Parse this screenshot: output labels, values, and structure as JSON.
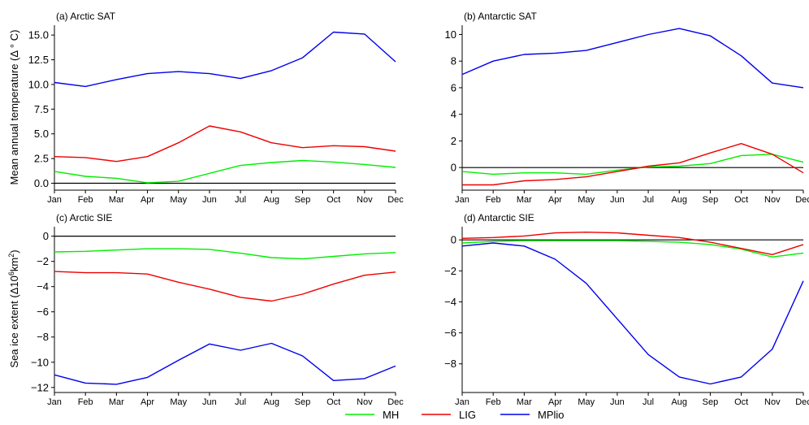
{
  "legend": [
    {
      "name": "MH",
      "color": "#00ee00"
    },
    {
      "name": "LIG",
      "color": "#ee0000"
    },
    {
      "name": "MPlio",
      "color": "#0000ee"
    }
  ],
  "y_labels": {
    "sat": "Mean annual temperature (Δ ° C)",
    "sie_prefix": "Sea ice extent (Δ10",
    "sie_exp1": "6",
    "sie_mid": "km",
    "sie_exp2": "2",
    "sie_suffix": ")"
  },
  "chart_data": [
    {
      "id": "a",
      "type": "line",
      "title": "(a) Arctic SAT",
      "categories": [
        "Jan",
        "Feb",
        "Mar",
        "Apr",
        "May",
        "Jun",
        "Jul",
        "Aug",
        "Sep",
        "Oct",
        "Nov",
        "Dec"
      ],
      "ylim": [
        -0.7,
        16.0
      ],
      "yticks": [
        0.0,
        2.5,
        5.0,
        7.5,
        10.0,
        12.5,
        15.0
      ],
      "ytick_labels": [
        "0.0",
        "2.5",
        "5.0",
        "7.5",
        "10.0",
        "12.5",
        "15.0"
      ],
      "zero_line": true,
      "series": [
        {
          "name": "MH",
          "values": [
            1.2,
            0.7,
            0.5,
            0.05,
            0.2,
            1.0,
            1.8,
            2.1,
            2.3,
            2.15,
            1.9,
            1.6
          ]
        },
        {
          "name": "LIG",
          "values": [
            2.7,
            2.6,
            2.2,
            2.7,
            4.1,
            5.8,
            5.2,
            4.1,
            3.6,
            3.8,
            3.7,
            3.25
          ]
        },
        {
          "name": "MPlio",
          "values": [
            10.2,
            9.8,
            10.5,
            11.1,
            11.3,
            11.1,
            10.6,
            11.4,
            12.7,
            15.3,
            15.1,
            12.3
          ]
        }
      ]
    },
    {
      "id": "b",
      "type": "line",
      "title": "(b) Antarctic SAT",
      "categories": [
        "Jan",
        "Feb",
        "Mar",
        "Apr",
        "May",
        "Jun",
        "Jul",
        "Aug",
        "Sep",
        "Oct",
        "Nov",
        "Dec"
      ],
      "ylim": [
        -1.7,
        10.7
      ],
      "yticks": [
        0,
        2,
        4,
        6,
        8,
        10
      ],
      "ytick_labels": [
        "0",
        "2",
        "4",
        "6",
        "8",
        "10"
      ],
      "zero_line": true,
      "series": [
        {
          "name": "MH",
          "values": [
            -0.3,
            -0.5,
            -0.4,
            -0.4,
            -0.5,
            -0.2,
            0.05,
            0.1,
            0.3,
            0.9,
            1.0,
            0.4
          ]
        },
        {
          "name": "LIG",
          "values": [
            -1.3,
            -1.3,
            -1.0,
            -0.9,
            -0.7,
            -0.3,
            0.1,
            0.35,
            1.1,
            1.8,
            1.0,
            -0.4
          ]
        },
        {
          "name": "MPlio",
          "values": [
            7.0,
            8.0,
            8.5,
            8.6,
            8.8,
            9.4,
            10.0,
            10.45,
            9.9,
            8.4,
            6.35,
            6.0
          ]
        }
      ]
    },
    {
      "id": "c",
      "type": "line",
      "title": "(c) Arctic SIE",
      "categories": [
        "Jan",
        "Feb",
        "Mar",
        "Apr",
        "May",
        "Jun",
        "Jul",
        "Aug",
        "Sep",
        "Oct",
        "Nov",
        "Dec"
      ],
      "ylim": [
        -12.4,
        0.75
      ],
      "yticks": [
        0,
        -2,
        -4,
        -6,
        -8,
        -10,
        -12
      ],
      "ytick_labels": [
        "0",
        "−2",
        "−4",
        "−6",
        "−8",
        "−10",
        "−12"
      ],
      "zero_line": true,
      "series": [
        {
          "name": "MH",
          "values": [
            -1.25,
            -1.2,
            -1.1,
            -1.0,
            -1.0,
            -1.05,
            -1.35,
            -1.7,
            -1.8,
            -1.6,
            -1.4,
            -1.3
          ]
        },
        {
          "name": "LIG",
          "values": [
            -2.8,
            -2.9,
            -2.9,
            -3.0,
            -3.65,
            -4.2,
            -4.85,
            -5.15,
            -4.6,
            -3.8,
            -3.1,
            -2.85
          ]
        },
        {
          "name": "MPlio",
          "values": [
            -11.0,
            -11.65,
            -11.75,
            -11.2,
            -9.85,
            -8.55,
            -9.05,
            -8.5,
            -9.5,
            -11.45,
            -11.3,
            -10.3
          ]
        }
      ]
    },
    {
      "id": "d",
      "type": "line",
      "title": "(d) Antarctic SIE",
      "categories": [
        "Jan",
        "Feb",
        "Mar",
        "Apr",
        "May",
        "Jun",
        "Jul",
        "Aug",
        "Sep",
        "Oct",
        "Nov",
        "Dec"
      ],
      "ylim": [
        -9.85,
        0.85
      ],
      "yticks": [
        0,
        -2,
        -4,
        -6,
        -8
      ],
      "ytick_labels": [
        "0",
        "−2",
        "−4",
        "−6",
        "−8"
      ],
      "zero_line": true,
      "series": [
        {
          "name": "MH",
          "values": [
            -0.2,
            -0.1,
            -0.05,
            -0.05,
            -0.05,
            -0.05,
            -0.1,
            -0.15,
            -0.3,
            -0.6,
            -1.1,
            -0.85
          ]
        },
        {
          "name": "LIG",
          "values": [
            0.1,
            0.15,
            0.25,
            0.45,
            0.5,
            0.45,
            0.3,
            0.15,
            -0.15,
            -0.55,
            -0.95,
            -0.3
          ]
        },
        {
          "name": "MPlio",
          "values": [
            -0.4,
            -0.2,
            -0.4,
            -1.25,
            -2.8,
            -5.1,
            -7.4,
            -8.85,
            -9.3,
            -8.85,
            -7.05,
            -2.65
          ]
        }
      ]
    }
  ]
}
